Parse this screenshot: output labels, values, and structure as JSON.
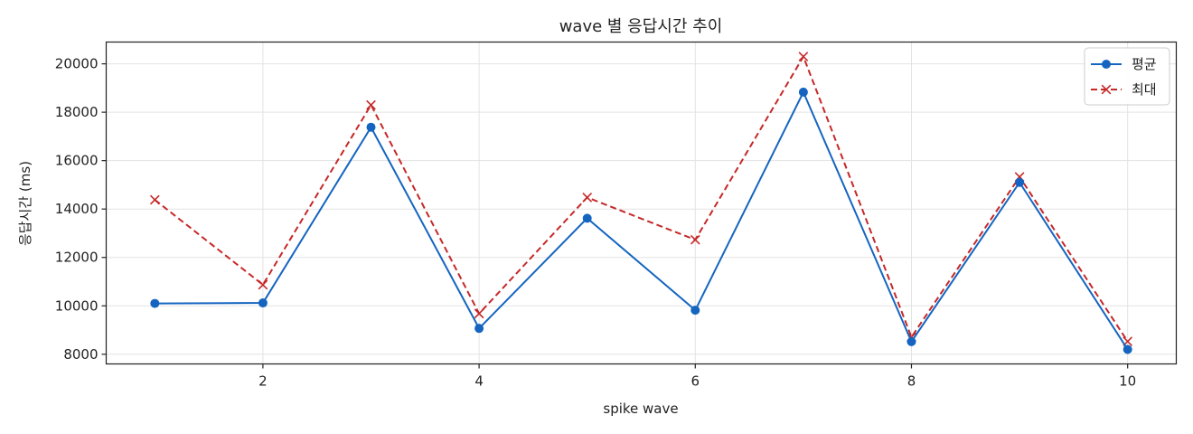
{
  "chart_data": {
    "type": "line",
    "title": "wave 별 응답시간 추이",
    "xlabel": "spike wave",
    "ylabel": "응답시간 (ms)",
    "x": [
      1,
      2,
      3,
      4,
      5,
      6,
      7,
      8,
      9,
      10
    ],
    "xlim": [
      0.55,
      10.45
    ],
    "ylim": [
      7600,
      20900
    ],
    "xticks": [
      2,
      4,
      6,
      8,
      10
    ],
    "yticks": [
      8000,
      10000,
      12000,
      14000,
      16000,
      18000,
      20000
    ],
    "grid": true,
    "legend_position": "top-right",
    "series": [
      {
        "name": "평균",
        "color": "#1565c0",
        "line_style": "solid",
        "marker": "circle",
        "values": [
          10100,
          10120,
          17380,
          9070,
          13620,
          9820,
          18830,
          8520,
          15100,
          8200
        ]
      },
      {
        "name": "최대",
        "color": "#c62828",
        "line_style": "dashed",
        "marker": "x",
        "values": [
          14380,
          10870,
          18300,
          9680,
          14480,
          12730,
          20300,
          8710,
          15330,
          8530
        ]
      }
    ]
  }
}
